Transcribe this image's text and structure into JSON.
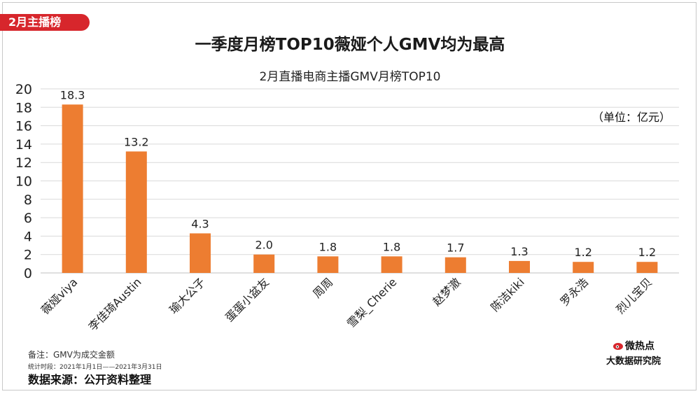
{
  "header": {
    "tag": "2月主播榜"
  },
  "title": "一季度月榜TOP10薇娅个人GMV均为最高",
  "subtitle": "2月直播电商主播GMV月榜TOP10",
  "unit_label": "（单位：亿元）",
  "notes": {
    "remark": "备注：GMV为成交金额",
    "period": "统计时段：2021年1月1日——2021年3月31日",
    "source": "数据来源：公开资料整理"
  },
  "brand": {
    "line1": "微热点",
    "line2": "大数据研究院"
  },
  "colors": {
    "bar": "#ED7D31",
    "tag": "#d7262c",
    "grid": "#d9d9d9"
  },
  "chart_data": {
    "type": "bar",
    "categories": [
      "薇娅viya",
      "李佳琦Austin",
      "瑜大公子",
      "蛋蛋小盆友",
      "周周",
      "雪梨_Cherie",
      "赵梦澈",
      "陈洁kiki",
      "罗永浩",
      "烈儿宝贝"
    ],
    "values": [
      18.3,
      13.2,
      4.3,
      2.0,
      1.8,
      1.8,
      1.7,
      1.3,
      1.2,
      1.2
    ],
    "value_labels": [
      "18.3",
      "13.2",
      "4.3",
      "2.0",
      "1.8",
      "1.8",
      "1.7",
      "1.3",
      "1.2",
      "1.2"
    ],
    "ylim": [
      0,
      20
    ],
    "yticks": [
      0,
      2,
      4,
      6,
      8,
      10,
      12,
      14,
      16,
      18,
      20
    ],
    "grid": true
  }
}
